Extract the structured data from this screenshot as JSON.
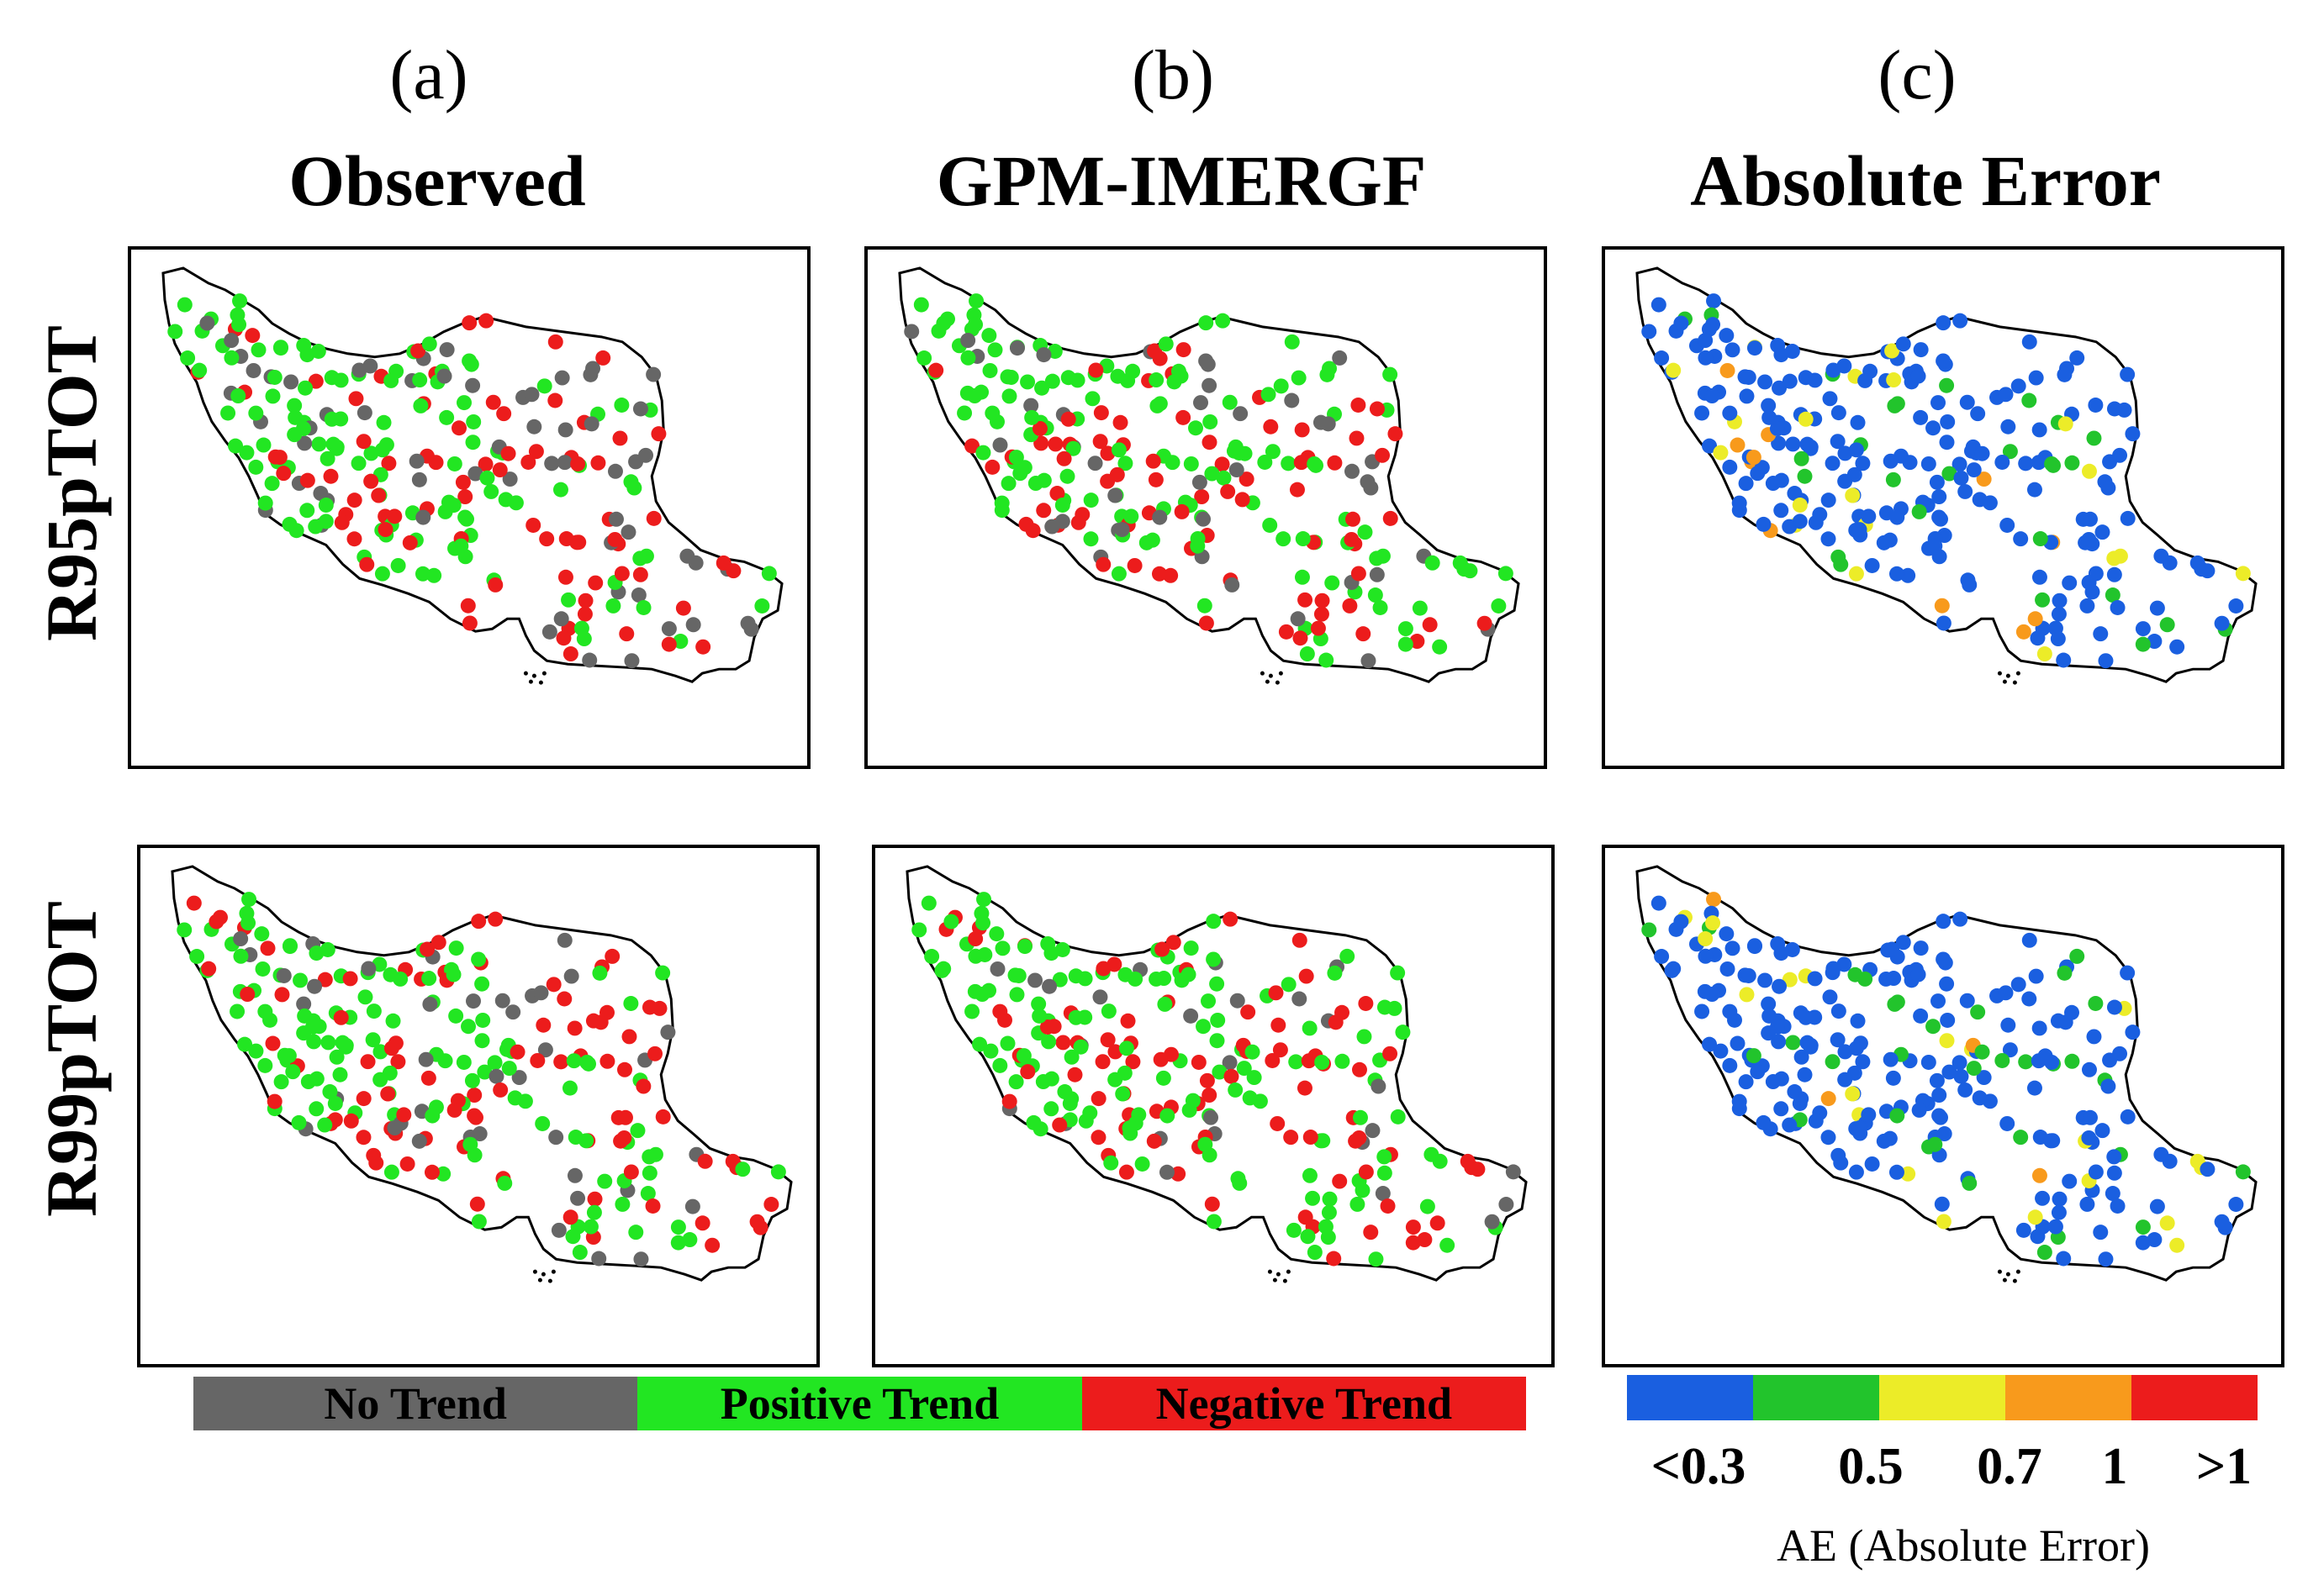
{
  "figure": {
    "columns": [
      {
        "letter": "(a)",
        "title": "Observed"
      },
      {
        "letter": "(b)",
        "title": "GPM-IMERGF"
      },
      {
        "letter": "(c)",
        "title": "Absolute Error"
      }
    ],
    "rows": [
      "R95pTOT",
      "R99pTOT"
    ]
  },
  "trend_legend": {
    "items": [
      {
        "label": "No Trend",
        "color": "#666666"
      },
      {
        "label": "Positive Trend",
        "color": "#22e622"
      },
      {
        "label": "Negative Trend",
        "color": "#ec1c1c"
      }
    ]
  },
  "ae_legend": {
    "title": "AE (Absolute Error)",
    "colors": [
      "#1a5fe0",
      "#22c42c",
      "#ecec28",
      "#f89a1c",
      "#ec1c1c"
    ],
    "ticks": [
      "<0.3",
      "0.5",
      "0.7",
      "1",
      ">1"
    ]
  },
  "map_colors": {
    "none": "#666666",
    "pos": "#22e622",
    "neg": "#ec1c1c",
    "ae": [
      "#1a5fe0",
      "#22c42c",
      "#ecec28",
      "#f89a1c",
      "#ec1c1c"
    ]
  }
}
